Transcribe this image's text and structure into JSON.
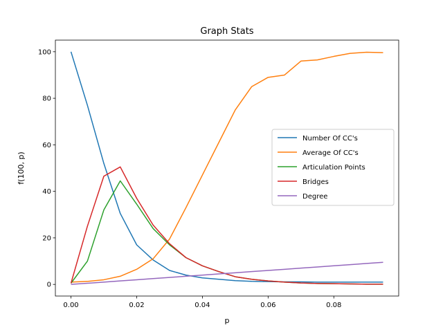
{
  "chart_data": {
    "type": "line",
    "title": "Graph Stats",
    "xlabel": "p",
    "ylabel": "f(100, p)",
    "xlim": [
      -0.00475,
      0.09975
    ],
    "ylim": [
      -5,
      105
    ],
    "xticks": [
      0.0,
      0.02,
      0.04,
      0.06,
      0.08
    ],
    "xtick_labels": [
      "0.00",
      "0.02",
      "0.04",
      "0.06",
      "0.08"
    ],
    "yticks": [
      0,
      20,
      40,
      60,
      80,
      100
    ],
    "ytick_labels": [
      "0",
      "20",
      "40",
      "60",
      "80",
      "100"
    ],
    "grid": false,
    "legend_position": "center-right",
    "x": [
      0.0,
      0.005,
      0.01,
      0.015,
      0.02,
      0.025,
      0.03,
      0.035,
      0.04,
      0.045,
      0.05,
      0.055,
      0.06,
      0.065,
      0.07,
      0.075,
      0.08,
      0.085,
      0.09,
      0.095
    ],
    "series": [
      {
        "name": "Number Of CC's",
        "color": "#1f77b4",
        "values": [
          100,
          77,
          52,
          30.5,
          17,
          10.5,
          6,
          4,
          2.8,
          2.2,
          1.6,
          1.3,
          1.2,
          1.1,
          1.1,
          1.0,
          1.0,
          1.0,
          1.0,
          1.0
        ]
      },
      {
        "name": "Average Of CC's",
        "color": "#ff7f0e",
        "values": [
          1,
          1.3,
          2,
          3.5,
          6.5,
          11,
          19.5,
          33,
          47,
          61,
          75,
          85,
          89,
          90,
          96,
          96.5,
          98,
          99.3,
          99.8,
          99.6
        ]
      },
      {
        "name": "Articulation Points",
        "color": "#2ca02c",
        "values": [
          0.5,
          10,
          32,
          44.5,
          34.5,
          24,
          17,
          11.5,
          8,
          5.5,
          3.3,
          2.2,
          1.5,
          1.0,
          0.6,
          0.4,
          0.3,
          0.2,
          0.1,
          0.1
        ]
      },
      {
        "name": "Bridges",
        "color": "#d62728",
        "values": [
          0.5,
          25,
          46.5,
          50.5,
          37,
          25.5,
          17.5,
          11.5,
          8,
          5.5,
          3.3,
          2.2,
          1.5,
          1.0,
          0.6,
          0.4,
          0.3,
          0.2,
          0.1,
          0.1
        ]
      },
      {
        "name": "Degree",
        "color": "#9467bd",
        "values": [
          0,
          0.5,
          1.0,
          1.5,
          2.0,
          2.5,
          3.0,
          3.5,
          4.0,
          4.5,
          5.0,
          5.5,
          6.0,
          6.5,
          7.0,
          7.5,
          8.0,
          8.5,
          9.0,
          9.5
        ]
      }
    ]
  }
}
